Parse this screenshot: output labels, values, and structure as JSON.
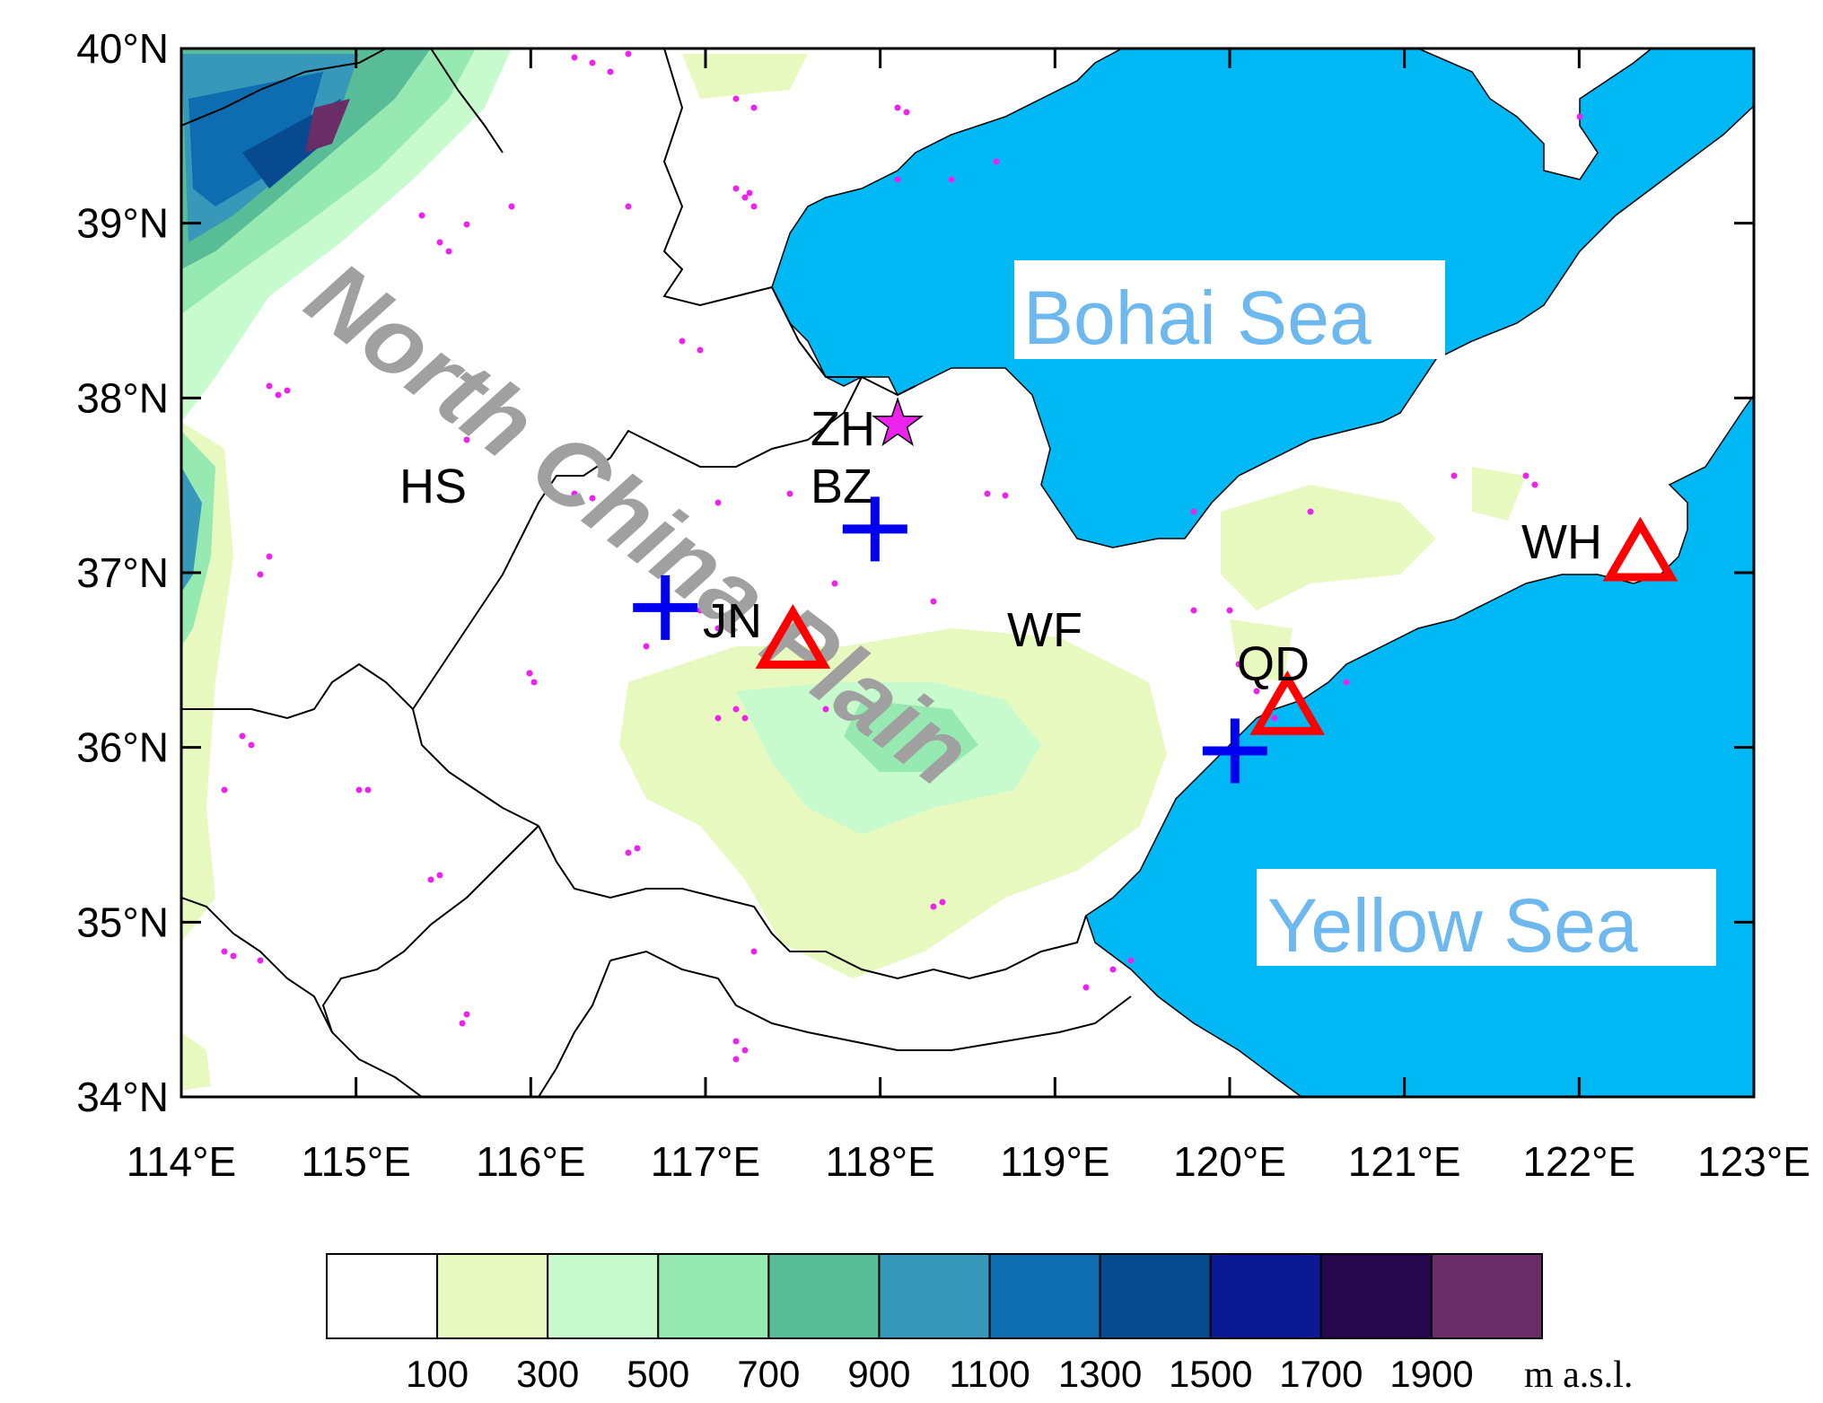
{
  "map": {
    "lat_labels": [
      "40°N",
      "39°N",
      "38°N",
      "37°N",
      "36°N",
      "35°N",
      "34°N"
    ],
    "lon_labels": [
      "114°E",
      "115°E",
      "116°E",
      "117°E",
      "118°E",
      "119°E",
      "120°E",
      "121°E",
      "122°E",
      "123°E"
    ],
    "extent": {
      "lon": [
        114,
        123
      ],
      "lat": [
        34,
        40
      ]
    },
    "region_label": "North China Plain",
    "seas": [
      {
        "name": "Bohai Sea"
      },
      {
        "name": "Yellow Sea"
      }
    ],
    "sites": [
      {
        "code": "ZH",
        "marker": "star",
        "color": "#ee22ee",
        "lon": 118.1,
        "lat": 37.85
      },
      {
        "code": "BZ",
        "marker": "plus",
        "color": "#0000ee",
        "lon": 117.97,
        "lat": 37.25
      },
      {
        "code": "JN",
        "marker": "plus",
        "color": "#0000ee",
        "lon": 116.77,
        "lat": 36.8
      },
      {
        "code": "JN",
        "marker": "triangle",
        "color": "#ff0000",
        "lon": 117.5,
        "lat": 36.6
      },
      {
        "code": "HS",
        "marker": "label",
        "lon": 115.5,
        "lat": 37.5
      },
      {
        "code": "WF",
        "marker": "label",
        "lon": 119.0,
        "lat": 36.7
      },
      {
        "code": "QD",
        "marker": "triangle",
        "color": "#ff0000",
        "lon": 120.33,
        "lat": 36.22
      },
      {
        "code": "QD",
        "marker": "plus",
        "color": "#0000ee",
        "lon": 120.03,
        "lat": 35.98
      },
      {
        "code": "WH",
        "marker": "triangle",
        "color": "#ff0000",
        "lon": 122.35,
        "lat": 37.1
      }
    ],
    "colors": {
      "sea": "#00b9f4",
      "land": "#ffffff",
      "border": "#000000",
      "points": "#ee22ee"
    }
  },
  "colorbar": {
    "labels": [
      "100",
      "300",
      "500",
      "700",
      "900",
      "1100",
      "1300",
      "1500",
      "1700",
      "1900"
    ],
    "unit": "m a.s.l.",
    "colors": [
      "#ffffff",
      "#e8f9c0",
      "#c7fbcd",
      "#97e9b2",
      "#58bd97",
      "#3898b9",
      "#0d6db0",
      "#084a8f",
      "#0b1994",
      "#24074d",
      "#6a2d67"
    ]
  }
}
